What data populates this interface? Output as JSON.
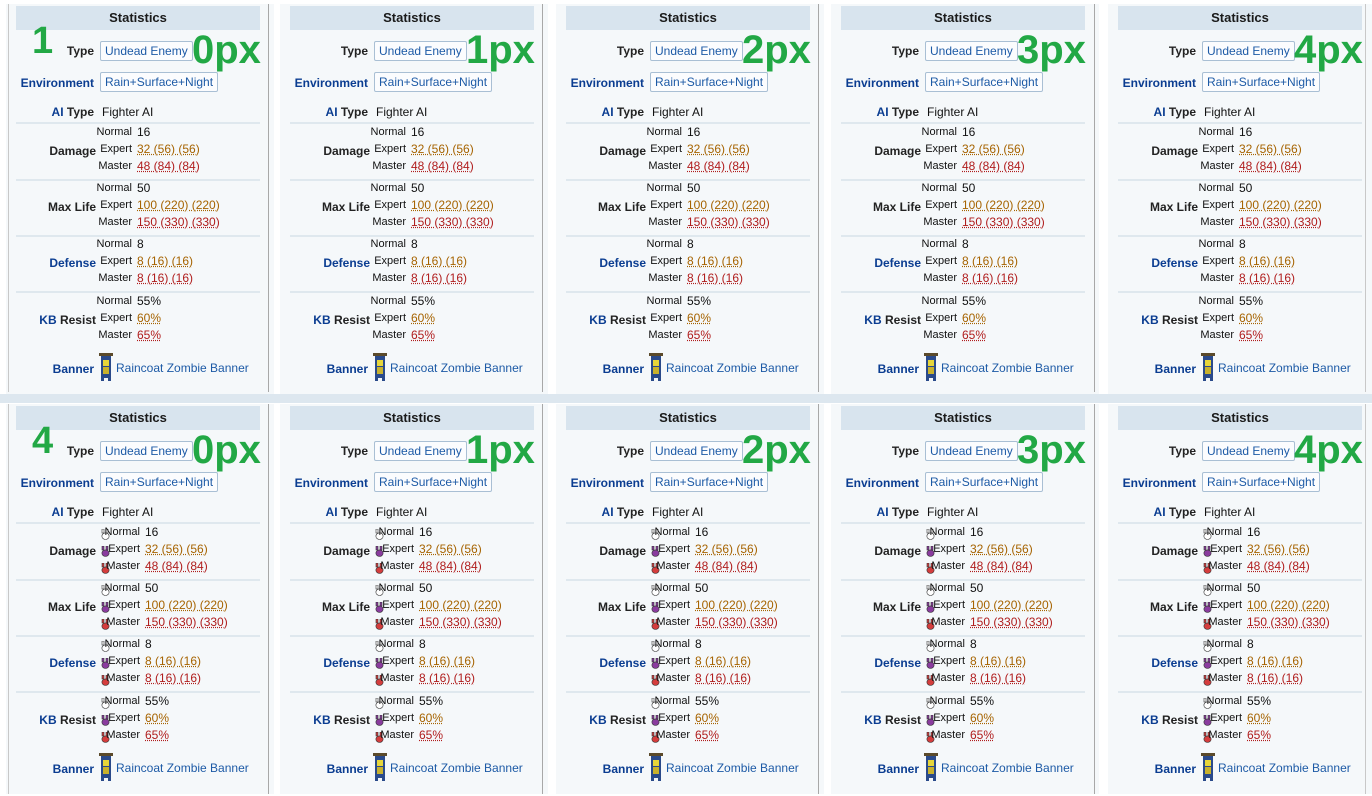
{
  "panel": {
    "header": "Statistics",
    "type_label": "Type",
    "type_value": "Undead Enemy",
    "env_label": "Environment",
    "env_value": "Rain+Surface+Night",
    "ai_label_1": "AI",
    "ai_label_2": "Type",
    "ai_value": "Fighter AI",
    "damage_label": "Damage",
    "maxlife_label": "Max Life",
    "defense_label": "Defense",
    "kb_label_1": "KB",
    "kb_label_2": "Resist",
    "banner_label": "Banner",
    "banner_value": "Raincoat Zombie Banner",
    "tier_normal": "Normal",
    "tier_expert": "Expert",
    "tier_master": "Master",
    "damage": [
      "16",
      "32 (56) (56)",
      "48 (84) (84)"
    ],
    "maxlife": [
      "50",
      "100 (220) (220)",
      "150 (330) (330)"
    ],
    "defense": [
      "8",
      "8 (16) (16)",
      "8 (16) (16)"
    ],
    "kb": [
      "55%",
      "60%",
      "65%"
    ]
  },
  "markers": {
    "row1_number": "1",
    "row2_number": "4",
    "px_labels": [
      "0px",
      "1px",
      "2px",
      "3px",
      "4px"
    ]
  },
  "colors": {
    "marker_green": "#22a845",
    "header_bg": "#d8e4ee",
    "panel_bg": "#f5f8fa",
    "link_blue": "#1d5aa6",
    "label_blue": "#0b3d91",
    "expert_orange": "#a66300",
    "master_red": "#b01c1c"
  },
  "icons": {
    "normal": "white-bunny-icon",
    "expert": "purple-bunny-icon",
    "master": "red-bunny-icon",
    "banner": "raincoat-zombie-banner-icon"
  }
}
